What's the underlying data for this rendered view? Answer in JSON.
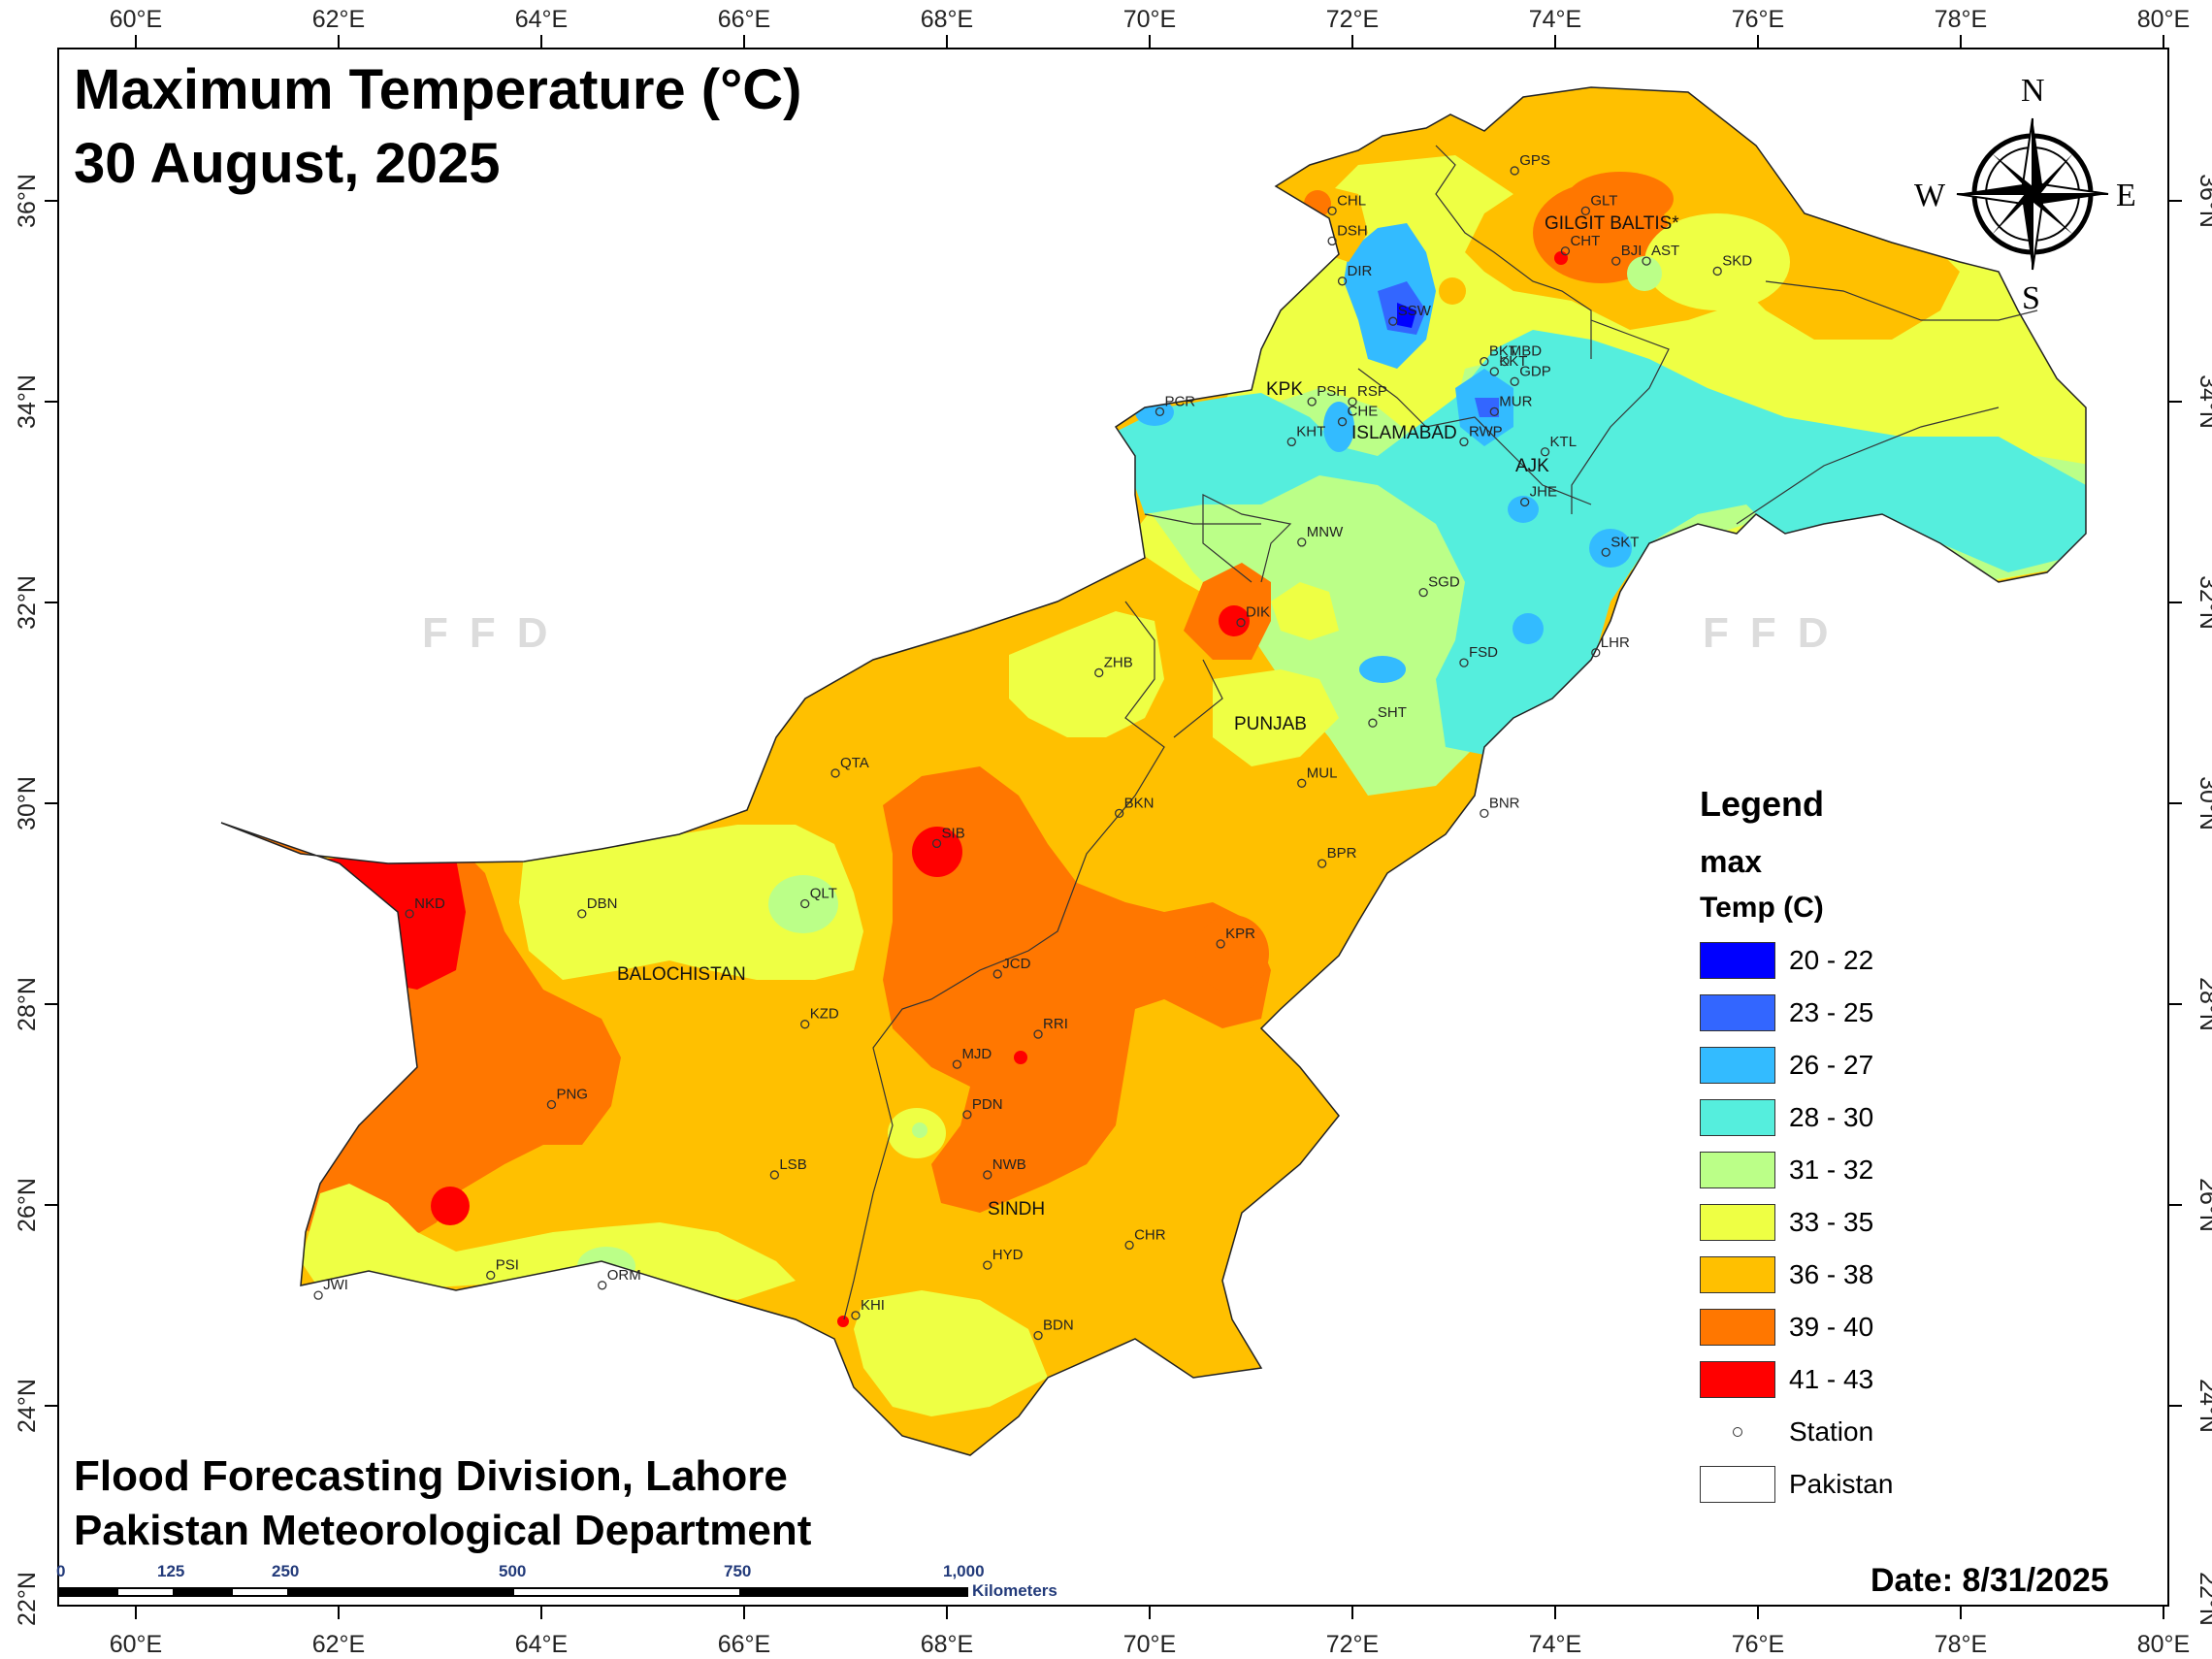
{
  "title": {
    "line1": "Maximum Temperature (°C)",
    "line2": "30 August, 2025"
  },
  "credits": {
    "line1": "Flood Forecasting Division, Lahore",
    "line2": "Pakistan Meteorological Department"
  },
  "date_label": "Date: 8/31/2025",
  "watermark": "FFD",
  "axes": {
    "lon_ticks": [
      "60°E",
      "62°E",
      "64°E",
      "66°E",
      "68°E",
      "70°E",
      "72°E",
      "74°E",
      "76°E",
      "78°E",
      "80°E"
    ],
    "lat_ticks": [
      "36°N",
      "34°N",
      "32°N",
      "30°N",
      "28°N",
      "26°N",
      "24°N",
      "22°N"
    ]
  },
  "north_arrow": {
    "n": "N",
    "s": "S",
    "e": "E",
    "w": "W"
  },
  "scalebar": {
    "labels": [
      "0",
      "125",
      "250",
      "500",
      "750",
      "1,000"
    ],
    "unit": "Kilometers"
  },
  "legend": {
    "title": "Legend",
    "layer": "max",
    "unit": "Temp (C)",
    "classes": [
      {
        "label": "20 - 22",
        "color": "#0000ff"
      },
      {
        "label": "23 - 25",
        "color": "#3366ff"
      },
      {
        "label": "26 - 27",
        "color": "#33bbff"
      },
      {
        "label": "28 - 30",
        "color": "#55eedd"
      },
      {
        "label": "31 - 32",
        "color": "#bbff88"
      },
      {
        "label": "33 - 35",
        "color": "#eeff44"
      },
      {
        "label": "36 - 38",
        "color": "#ffc000"
      },
      {
        "label": "39 - 40",
        "color": "#ff7700"
      },
      {
        "label": "41 - 43",
        "color": "#ff0000"
      }
    ],
    "station_label": "Station",
    "boundary_label": "Pakistan"
  },
  "regions": [
    "GILGIT BALTIS*",
    "KPK",
    "ISLAMABAD",
    "AJK",
    "PUNJAB",
    "BALOCHISTAN",
    "SINDH"
  ],
  "stations": [
    {
      "code": "GPS",
      "lon": 73.6,
      "lat": 36.3
    },
    {
      "code": "GLT",
      "lon": 74.3,
      "lat": 35.9
    },
    {
      "code": "CHL",
      "lon": 71.8,
      "lat": 35.9
    },
    {
      "code": "DSH",
      "lon": 71.8,
      "lat": 35.6
    },
    {
      "code": "CHT",
      "lon": 74.1,
      "lat": 35.5
    },
    {
      "code": "BJI",
      "lon": 74.6,
      "lat": 35.4
    },
    {
      "code": "AST",
      "lon": 74.9,
      "lat": 35.4
    },
    {
      "code": "SKD",
      "lon": 75.6,
      "lat": 35.3
    },
    {
      "code": "DIR",
      "lon": 71.9,
      "lat": 35.2
    },
    {
      "code": "SSW",
      "lon": 72.4,
      "lat": 34.8
    },
    {
      "code": "BKT",
      "lon": 73.3,
      "lat": 34.4
    },
    {
      "code": "KKT",
      "lon": 73.4,
      "lat": 34.3
    },
    {
      "code": "MBD",
      "lon": 73.5,
      "lat": 34.4
    },
    {
      "code": "GDP",
      "lon": 73.6,
      "lat": 34.2
    },
    {
      "code": "PSH",
      "lon": 71.6,
      "lat": 34.0
    },
    {
      "code": "RSP",
      "lon": 72.0,
      "lat": 34.0
    },
    {
      "code": "MUR",
      "lon": 73.4,
      "lat": 33.9
    },
    {
      "code": "PCR",
      "lon": 70.1,
      "lat": 33.9
    },
    {
      "code": "CHE",
      "lon": 71.9,
      "lat": 33.8
    },
    {
      "code": "RWP",
      "lon": 73.1,
      "lat": 33.6
    },
    {
      "code": "KHT",
      "lon": 71.4,
      "lat": 33.6
    },
    {
      "code": "KTL",
      "lon": 73.9,
      "lat": 33.5
    },
    {
      "code": "JHE",
      "lon": 73.7,
      "lat": 33.0
    },
    {
      "code": "SKT",
      "lon": 74.5,
      "lat": 32.5
    },
    {
      "code": "MNW",
      "lon": 71.5,
      "lat": 32.6
    },
    {
      "code": "SGD",
      "lon": 72.7,
      "lat": 32.1
    },
    {
      "code": "DIK",
      "lon": 70.9,
      "lat": 31.8
    },
    {
      "code": "LHR",
      "lon": 74.4,
      "lat": 31.5
    },
    {
      "code": "FSD",
      "lon": 73.1,
      "lat": 31.4
    },
    {
      "code": "ZHB",
      "lon": 69.5,
      "lat": 31.3
    },
    {
      "code": "SHT",
      "lon": 72.2,
      "lat": 30.8
    },
    {
      "code": "QTA",
      "lon": 66.9,
      "lat": 30.3
    },
    {
      "code": "MUL",
      "lon": 71.5,
      "lat": 30.2
    },
    {
      "code": "BNR",
      "lon": 73.3,
      "lat": 29.9
    },
    {
      "code": "BKN",
      "lon": 69.7,
      "lat": 29.9
    },
    {
      "code": "SIB",
      "lon": 67.9,
      "lat": 29.6
    },
    {
      "code": "BPR",
      "lon": 71.7,
      "lat": 29.4
    },
    {
      "code": "QLT",
      "lon": 66.6,
      "lat": 29.0
    },
    {
      "code": "DBN",
      "lon": 64.4,
      "lat": 28.9
    },
    {
      "code": "NKD",
      "lon": 62.7,
      "lat": 28.9
    },
    {
      "code": "KPR",
      "lon": 70.7,
      "lat": 28.6
    },
    {
      "code": "JCD",
      "lon": 68.5,
      "lat": 28.3
    },
    {
      "code": "KZD",
      "lon": 66.6,
      "lat": 27.8
    },
    {
      "code": "RRI",
      "lon": 68.9,
      "lat": 27.7
    },
    {
      "code": "MJD",
      "lon": 68.1,
      "lat": 27.4
    },
    {
      "code": "PNG",
      "lon": 64.1,
      "lat": 27.0
    },
    {
      "code": "PDN",
      "lon": 68.2,
      "lat": 26.9
    },
    {
      "code": "NWB",
      "lon": 68.4,
      "lat": 26.3
    },
    {
      "code": "LSB",
      "lon": 66.3,
      "lat": 26.3
    },
    {
      "code": "CHR",
      "lon": 69.8,
      "lat": 25.6
    },
    {
      "code": "HYD",
      "lon": 68.4,
      "lat": 25.4
    },
    {
      "code": "PSI",
      "lon": 63.5,
      "lat": 25.3
    },
    {
      "code": "ORM",
      "lon": 64.6,
      "lat": 25.2
    },
    {
      "code": "JWI",
      "lon": 61.8,
      "lat": 25.1
    },
    {
      "code": "KHI",
      "lon": 67.1,
      "lat": 24.9
    },
    {
      "code": "BDN",
      "lon": 68.9,
      "lat": 24.7
    }
  ]
}
